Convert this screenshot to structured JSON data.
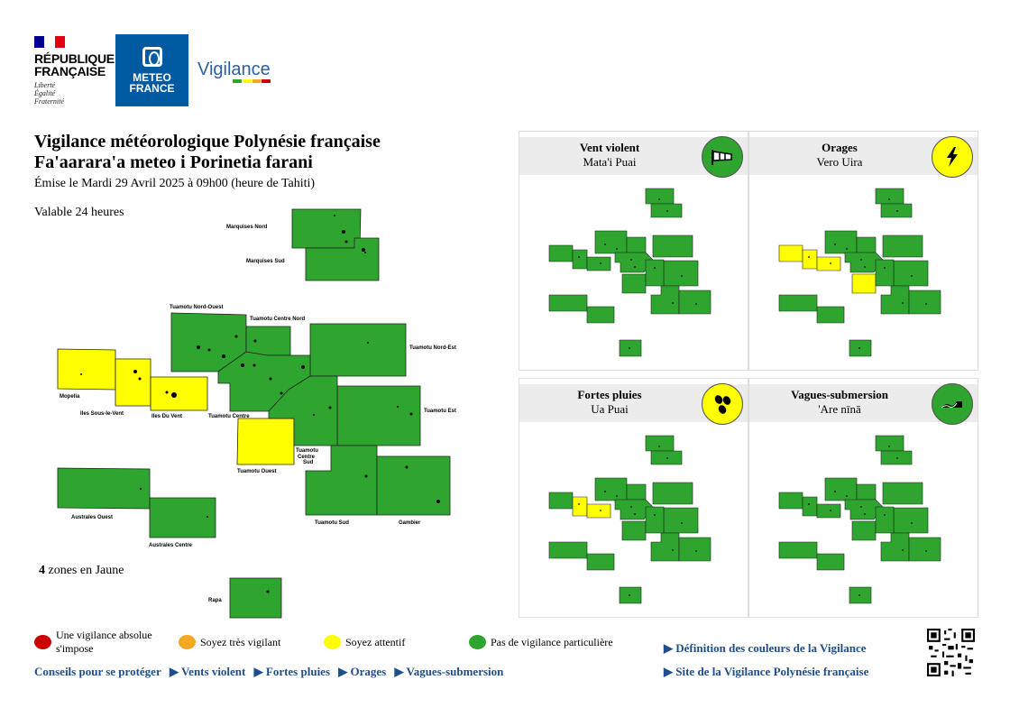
{
  "header": {
    "rf_name_line1": "RÉPUBLIQUE",
    "rf_name_line2": "FRANÇAISE",
    "rf_motto_1": "Liberté",
    "rf_motto_2": "Égalité",
    "rf_motto_3": "Fraternité",
    "mf_line1": "METEO",
    "mf_line2": "FRANCE",
    "vigilance": "Vigilance"
  },
  "title": {
    "line1": "Vigilance météorologique Polynésie française",
    "line2": "Fa'aarara'a meteo i Porinetia farani",
    "issued": "Émise le Mardi 29 Avril 2025 à 09h00 (heure de Tahiti)",
    "valid": "Valable 24 heures",
    "zones_count": "4",
    "zones_suffix": " zones en Jaune"
  },
  "colors": {
    "green": "#2ea52e",
    "yellow": "#ffff00",
    "orange": "#f5a623",
    "red": "#cc0000"
  },
  "map": {
    "zones": [
      {
        "id": "marquises-nord",
        "label": "Marquises Nord",
        "level": "green"
      },
      {
        "id": "marquises-sud",
        "label": "Marquises Sud",
        "level": "green"
      },
      {
        "id": "tuamotu-nord-ouest",
        "label": "Tuamotu Nord-Ouest",
        "level": "green"
      },
      {
        "id": "tuamotu-centre-nord",
        "label": "Tuamotu Centre Nord",
        "level": "green"
      },
      {
        "id": "tuamotu-nord-est",
        "label": "Tuamotu Nord-Est",
        "level": "green"
      },
      {
        "id": "mopelia",
        "label": "Mopelia",
        "level": "yellow"
      },
      {
        "id": "iles-sous-le-vent",
        "label": "Iles Sous-le-Vent",
        "level": "yellow"
      },
      {
        "id": "iles-du-vent",
        "label": "Iles Du Vent",
        "level": "yellow"
      },
      {
        "id": "tuamotu-centre",
        "label": "Tuamotu Centre",
        "level": "green"
      },
      {
        "id": "tuamotu-est",
        "label": "Tuamotu Est",
        "level": "green"
      },
      {
        "id": "tuamotu-ouest",
        "label": "Tuamotu Ouest",
        "level": "yellow"
      },
      {
        "id": "tuamotu-centre-sud",
        "label": "Tuamotu Centre Sud",
        "level": "green"
      },
      {
        "id": "australes-ouest",
        "label": "Australes Ouest",
        "level": "green"
      },
      {
        "id": "australes-centre",
        "label": "Australes Centre",
        "level": "green"
      },
      {
        "id": "tuamotu-sud",
        "label": "Tuamotu Sud",
        "level": "green"
      },
      {
        "id": "gambier",
        "label": "Gambier",
        "level": "green"
      },
      {
        "id": "rapa",
        "label": "Rapa",
        "level": "green"
      }
    ],
    "label_tuamotu_centre_sud_1": "Tuamotu",
    "label_tuamotu_centre_sud_2": "Centre",
    "label_tuamotu_centre_sud_3": "Sud"
  },
  "panels": [
    {
      "title": "Vent violent",
      "subtitle": "Mata'i Puai",
      "icon": "windsock-icon",
      "level": "green",
      "yellow_zones": []
    },
    {
      "title": "Orages",
      "subtitle": "Vero Uira",
      "icon": "lightning-icon",
      "level": "yellow",
      "yellow_zones": [
        "mopelia",
        "iles-sous-le-vent",
        "iles-du-vent",
        "tuamotu-ouest"
      ]
    },
    {
      "title": "Fortes pluies",
      "subtitle": "Ua Puai",
      "icon": "rain-drops-icon",
      "level": "yellow",
      "yellow_zones": [
        "iles-sous-le-vent",
        "iles-du-vent"
      ]
    },
    {
      "title": "Vagues-submersion",
      "subtitle": "'Are nīnā",
      "icon": "wave-icon",
      "level": "green",
      "yellow_zones": []
    }
  ],
  "legend": {
    "red": "Une vigilance absolue s'impose",
    "orange": "Soyez très vigilant",
    "yellow": "Soyez attentif",
    "green": "Pas de vigilance particulière"
  },
  "links": {
    "advice": "Conseils pour se protéger",
    "wind": "▶ Vents violent",
    "rain": "▶ Fortes pluies",
    "storms": "▶ Orages",
    "waves": "▶ Vagues-submersion",
    "definition": "▶ Définition des couleurs de la Vigilance",
    "site": "▶ Site de la Vigilance Polynésie française"
  }
}
